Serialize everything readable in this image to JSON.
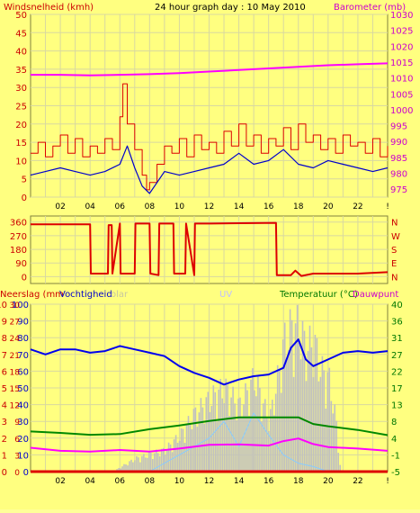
{
  "header": {
    "left_label": "Windsnelheid (kmh)",
    "title": "24 hour graph day : 10 May 2010",
    "right_label": "Barometer (mb)"
  },
  "bottom_header": {
    "left_label": "Neerslag (mm",
    "mid_label": "Vochtigheid",
    "faint_label_a": "olar",
    "faint_label_b": "UV",
    "right_label": "Temperatuur (°C)",
    "right_label2": "Dauwpunt"
  },
  "colors": {
    "background": "#ffff80",
    "grid": "#d8d8a0",
    "wind": "#dd0000",
    "wind_avg": "#0000cc",
    "pressure": "#ff00ff",
    "direction": "#dd0000",
    "humidity": "#0000ee",
    "temperature": "#008800",
    "dewpoint": "#ff00ff",
    "solar": "#c0c0c0",
    "uv": "#88ccff",
    "rain": "#dd0000",
    "right_axis_top": "#cc00cc",
    "right_axis_bottom": "#007700"
  },
  "chart_data": [
    {
      "type": "line",
      "title": "24 hour graph day : 10 May 2010",
      "x_ticks": [
        "02",
        "04",
        "06",
        "08",
        "10",
        "12",
        "14",
        "16",
        "18",
        "20",
        "22",
        "!"
      ],
      "y_left_label": "Windsnelheid (kmh)",
      "y_left_ticks": [
        0,
        5,
        10,
        15,
        20,
        25,
        30,
        35,
        40,
        45,
        50
      ],
      "y_left_range": [
        0,
        50
      ],
      "y_right_label": "Barometer (mb)",
      "y_right_ticks": [
        975,
        980,
        985,
        990,
        995,
        1000,
        1005,
        1010,
        1015,
        1020,
        1025,
        1030
      ],
      "y_right_range": [
        972.5,
        1030
      ],
      "series": [
        {
          "name": "Barometer",
          "axis": "right",
          "x": [
            0,
            2,
            4,
            6,
            8,
            10,
            12,
            14,
            16,
            18,
            20,
            22,
            24
          ],
          "values": [
            1011,
            1011,
            1010.8,
            1011,
            1011.2,
            1011.5,
            1012,
            1012.5,
            1013,
            1013.5,
            1014,
            1014.3,
            1014.6
          ]
        },
        {
          "name": "Windsnelheid",
          "axis": "left",
          "x": [
            0,
            0.5,
            1,
            1.5,
            2,
            2.5,
            3,
            3.5,
            4,
            4.5,
            5,
            5.5,
            6,
            6.2,
            6.5,
            7,
            7.5,
            7.8,
            8,
            8.5,
            9,
            9.5,
            10,
            10.5,
            11,
            11.5,
            12,
            12.5,
            13,
            13.5,
            14,
            14.5,
            15,
            15.5,
            16,
            16.5,
            17,
            17.5,
            18,
            18.5,
            19,
            19.5,
            20,
            20.5,
            21,
            21.5,
            22,
            22.5,
            23,
            23.5,
            24
          ],
          "values": [
            12,
            15,
            11,
            14,
            17,
            12,
            16,
            11,
            14,
            12,
            16,
            13,
            22,
            31,
            20,
            13,
            6,
            2,
            4,
            9,
            14,
            12,
            16,
            11,
            17,
            13,
            15,
            12,
            18,
            14,
            20,
            14,
            17,
            12,
            16,
            14,
            19,
            13,
            20,
            15,
            17,
            13,
            16,
            12,
            17,
            14,
            15,
            12,
            16,
            11,
            14
          ]
        },
        {
          "name": "Windsnelheid gem.",
          "axis": "left",
          "x": [
            0,
            1,
            2,
            3,
            4,
            5,
            6,
            6.5,
            7,
            7.5,
            8,
            8.5,
            9,
            10,
            11,
            12,
            13,
            14,
            15,
            16,
            17,
            18,
            19,
            20,
            21,
            22,
            23,
            24
          ],
          "values": [
            6,
            7,
            8,
            7,
            6,
            7,
            9,
            14,
            8,
            3,
            1,
            4,
            7,
            6,
            7,
            8,
            9,
            12,
            9,
            10,
            13,
            9,
            8,
            10,
            9,
            8,
            7,
            8
          ]
        }
      ]
    },
    {
      "type": "line",
      "title": "",
      "x_ticks": [
        "02",
        "04",
        "06",
        "08",
        "10",
        "12",
        "14",
        "16",
        "18",
        "20",
        "22",
        "!"
      ],
      "y_left_ticks": [
        0,
        90,
        180,
        270,
        360
      ],
      "y_left_range": [
        -45,
        400
      ],
      "y_right_ticks": [
        "N",
        "W",
        "S",
        "E",
        "N"
      ],
      "series": [
        {
          "name": "Windrichting",
          "x": [
            0,
            4,
            4.05,
            5.2,
            5.25,
            5.45,
            5.5,
            6,
            6.05,
            7,
            7.05,
            8,
            8.05,
            8.6,
            8.65,
            9.6,
            9.65,
            10.4,
            10.45,
            11,
            11.05,
            12,
            12.05,
            16.5,
            16.55,
            17.5,
            17.8,
            18.2,
            19,
            22,
            24
          ],
          "values": [
            345,
            345,
            20,
            20,
            340,
            340,
            20,
            350,
            20,
            20,
            350,
            350,
            20,
            10,
            350,
            350,
            20,
            20,
            350,
            10,
            350,
            350,
            350,
            355,
            10,
            10,
            40,
            5,
            20,
            20,
            30
          ]
        }
      ]
    },
    {
      "type": "line",
      "title": "",
      "x_ticks": [
        "02",
        "04",
        "06",
        "08",
        "10",
        "12",
        "14",
        "16",
        "18",
        "20",
        "22",
        "!"
      ],
      "y_left_label": "Neerslag (mm",
      "y_left_ticks": [
        0,
        1,
        2,
        3,
        4,
        5,
        6,
        7,
        8,
        9,
        10
      ],
      "y_left2_label": "Vochtigheid",
      "y_left2_ticks": [
        0,
        10,
        20,
        30,
        40,
        50,
        60,
        70,
        80,
        90,
        100
      ],
      "y_left3_ticks": [
        0,
        3,
        6,
        9,
        12,
        15,
        18,
        21,
        24,
        27,
        30
      ],
      "y_right_label": "Temperatuur (°C)",
      "y_right_label2": "Dauwpunt",
      "y_right_ticks": [
        -5,
        -1,
        4,
        8,
        13,
        17,
        22,
        27,
        31,
        36,
        40
      ],
      "y_right_range": [
        -5,
        40
      ],
      "series": [
        {
          "name": "Vochtigheid",
          "axis": "left2",
          "x": [
            0,
            1,
            2,
            3,
            4,
            5,
            6,
            7,
            8,
            9,
            10,
            11,
            12,
            13,
            14,
            15,
            16,
            17,
            17.5,
            18,
            18.5,
            19,
            20,
            21,
            22,
            23,
            24
          ],
          "values": [
            73,
            70,
            73,
            73,
            71,
            72,
            75,
            73,
            71,
            69,
            63,
            59,
            56,
            52,
            55,
            57,
            58,
            62,
            74,
            79,
            67,
            63,
            67,
            71,
            72,
            71,
            72
          ]
        },
        {
          "name": "Temperatuur",
          "axis": "right",
          "x": [
            0,
            2,
            4,
            6,
            8,
            10,
            12,
            14,
            16,
            18,
            19,
            20,
            22,
            24
          ],
          "values": [
            5.8,
            5.4,
            4.9,
            5.1,
            6.4,
            7.4,
            8.6,
            9.6,
            9.6,
            9.6,
            7.8,
            7.2,
            6.2,
            4.8
          ]
        },
        {
          "name": "Dauwpunt",
          "axis": "right",
          "x": [
            0,
            2,
            4,
            6,
            8,
            10,
            12,
            14,
            16,
            17,
            18,
            19,
            20,
            22,
            24
          ],
          "values": [
            1.4,
            0.6,
            0.4,
            0.8,
            0.4,
            1.2,
            2.2,
            2.3,
            2.0,
            3.2,
            3.9,
            2.4,
            1.6,
            1.2,
            0.6
          ]
        },
        {
          "name": "Solar",
          "axis": "left2",
          "x": [
            5.5,
            6,
            7,
            8,
            9,
            10,
            11,
            12,
            13,
            14,
            15,
            16,
            16.5,
            17,
            17.5,
            17.8,
            18,
            18.5,
            19,
            19.5,
            20,
            20.5,
            20.8
          ],
          "values": [
            0,
            3,
            9,
            12,
            15,
            25,
            40,
            50,
            58,
            45,
            65,
            35,
            60,
            90,
            100,
            100,
            100,
            85,
            90,
            70,
            65,
            35,
            0
          ]
        },
        {
          "name": "UV",
          "axis": "left2",
          "x": [
            8,
            10,
            12,
            13,
            14,
            15,
            16,
            17,
            18,
            19,
            20
          ],
          "values": [
            0,
            10,
            20,
            30,
            15,
            35,
            22,
            10,
            5,
            3,
            0
          ]
        },
        {
          "name": "Neerslag",
          "axis": "left",
          "x": [
            0,
            24
          ],
          "values": [
            0,
            0
          ]
        }
      ]
    }
  ]
}
